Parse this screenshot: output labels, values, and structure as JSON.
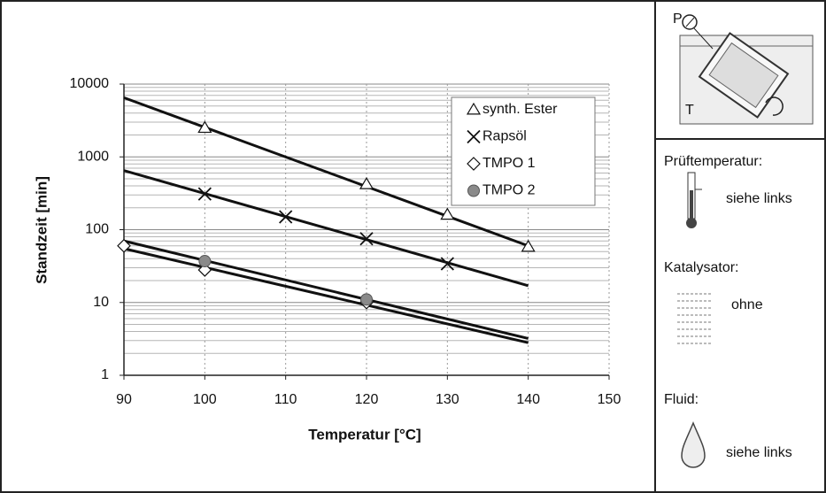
{
  "chart_data": {
    "type": "scatter",
    "xlabel": "Temperatur [°C]",
    "ylabel": "Standzeit [min]",
    "xlim": [
      90,
      150
    ],
    "xticks": [
      90,
      100,
      110,
      120,
      130,
      140,
      150
    ],
    "ylim": [
      1,
      10000
    ],
    "yticks": [
      1,
      10,
      100,
      1000,
      10000
    ],
    "y_minor_gridlines": [
      2,
      3,
      4,
      5,
      6,
      7,
      8,
      9,
      20,
      30,
      40,
      50,
      60,
      70,
      80,
      90,
      200,
      300,
      400,
      500,
      600,
      700,
      800,
      900,
      2000,
      3000,
      4000,
      5000,
      6000,
      7000,
      8000,
      9000
    ],
    "log_y": true,
    "grid": true,
    "legend": "upper right",
    "series": [
      {
        "name": "synth. Ester",
        "marker": "triangle",
        "color": "#111111",
        "x": [
          100,
          120,
          130,
          140
        ],
        "values": [
          2500,
          420,
          160,
          58
        ],
        "trend": {
          "x": [
            90,
            140
          ],
          "values": [
            6500,
            60
          ]
        }
      },
      {
        "name": "Rapsöl",
        "marker": "x",
        "color": "#111111",
        "x": [
          100,
          110,
          120,
          130
        ],
        "values": [
          310,
          150,
          75,
          34
        ],
        "trend": {
          "x": [
            90,
            140
          ],
          "values": [
            650,
            17
          ]
        }
      },
      {
        "name": "TMPO 1",
        "marker": "diamond",
        "color": "#111111",
        "x": [
          90,
          100,
          120
        ],
        "values": [
          60,
          28,
          10
        ],
        "trend": {
          "x": [
            90,
            140
          ],
          "values": [
            55,
            2.8
          ]
        }
      },
      {
        "name": "TMPO 2",
        "marker": "circle",
        "color": "#111111",
        "fill": "#8a8a8a",
        "x": [
          100,
          120
        ],
        "values": [
          37,
          11
        ],
        "trend": {
          "x": [
            90,
            140
          ],
          "values": [
            70,
            3.2
          ]
        }
      }
    ]
  },
  "side_panel": {
    "pressure_label": "P",
    "temperature_label": "T",
    "test_temperature": {
      "label": "Prüftemperatur:",
      "value": "siehe links"
    },
    "catalyst": {
      "label": "Katalysator:",
      "value": "ohne"
    },
    "fluid": {
      "label": "Fluid:",
      "value": "siehe links"
    }
  }
}
